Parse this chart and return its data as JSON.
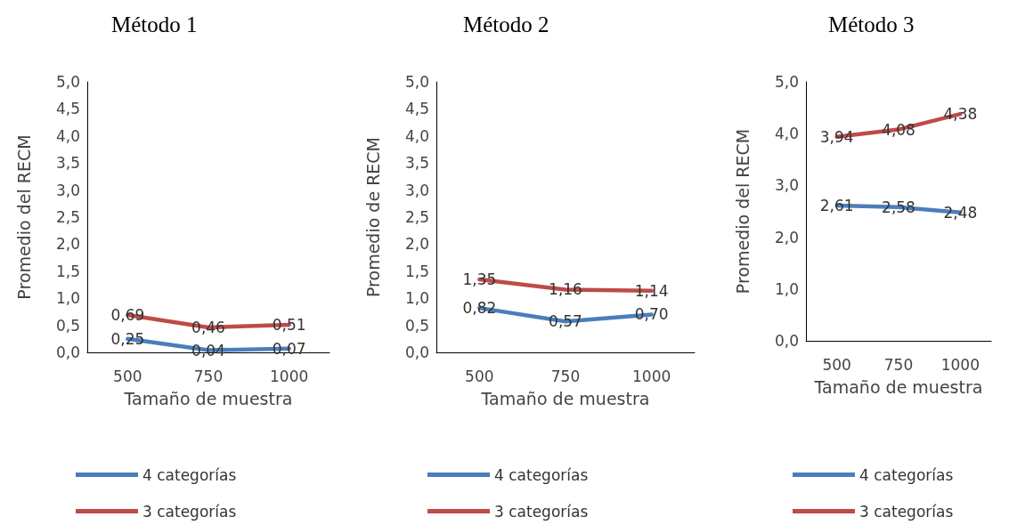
{
  "chart_data": [
    {
      "type": "line",
      "title": "Método 1",
      "xlabel": "Tamaño de muestra",
      "ylabel": "Promedio del RECM",
      "categories": [
        "500",
        "750",
        "1000"
      ],
      "series": [
        {
          "name": "4 categorías",
          "color": "#4a7ebb",
          "values": [
            0.25,
            0.04,
            0.07
          ],
          "value_labels": [
            "0,25",
            "0,04",
            "0,07"
          ]
        },
        {
          "name": "3 categorías",
          "color": "#be4b48",
          "values": [
            0.69,
            0.46,
            0.51
          ],
          "value_labels": [
            "0,69",
            "0,46",
            "0,51"
          ]
        }
      ],
      "ylim": [
        0,
        5
      ],
      "yticks": [
        {
          "value": 0,
          "label": "0,0"
        },
        {
          "value": 0.5,
          "label": "0,5"
        },
        {
          "value": 1,
          "label": "1,0"
        },
        {
          "value": 1.5,
          "label": "1,5"
        },
        {
          "value": 2,
          "label": "2,0"
        },
        {
          "value": 2.5,
          "label": "2,5"
        },
        {
          "value": 3,
          "label": "3,0"
        },
        {
          "value": 3.5,
          "label": "3,5"
        },
        {
          "value": 4,
          "label": "4,0"
        },
        {
          "value": 4.5,
          "label": "4,5"
        },
        {
          "value": 5,
          "label": "5,0"
        }
      ],
      "grid": false,
      "legend": "bottom",
      "marker": "none"
    },
    {
      "type": "line",
      "title": "Método 2",
      "xlabel": "Tamaño de muestra",
      "ylabel": "Promedio de RECM",
      "categories": [
        "500",
        "750",
        "1000"
      ],
      "series": [
        {
          "name": "4 categorías",
          "color": "#4a7ebb",
          "values": [
            0.82,
            0.57,
            0.7
          ],
          "value_labels": [
            "0,82",
            "0,57",
            "0,70"
          ]
        },
        {
          "name": "3 categorías",
          "color": "#be4b48",
          "values": [
            1.35,
            1.16,
            1.14
          ],
          "value_labels": [
            "1,35",
            "1,16",
            "1,14"
          ]
        }
      ],
      "ylim": [
        0,
        5
      ],
      "yticks": [
        {
          "value": 0,
          "label": "0,0"
        },
        {
          "value": 0.5,
          "label": "0,5"
        },
        {
          "value": 1,
          "label": "1,0"
        },
        {
          "value": 1.5,
          "label": "1,5"
        },
        {
          "value": 2,
          "label": "2,0"
        },
        {
          "value": 2.5,
          "label": "2,5"
        },
        {
          "value": 3,
          "label": "3,0"
        },
        {
          "value": 3.5,
          "label": "3,5"
        },
        {
          "value": 4,
          "label": "4,0"
        },
        {
          "value": 4.5,
          "label": "4,5"
        },
        {
          "value": 5,
          "label": "5,0"
        }
      ],
      "grid": false,
      "legend": "bottom",
      "marker": "none"
    },
    {
      "type": "line",
      "title": "Método 3",
      "xlabel": "Tamaño de muestra",
      "ylabel": "Promedio del RECM",
      "categories": [
        "500",
        "750",
        "1000"
      ],
      "series": [
        {
          "name": "4 categorías",
          "color": "#4a7ebb",
          "values": [
            2.61,
            2.58,
            2.48
          ],
          "value_labels": [
            "2,61",
            "2,58",
            "2,48"
          ]
        },
        {
          "name": "3 categorías",
          "color": "#be4b48",
          "values": [
            3.94,
            4.08,
            4.38
          ],
          "value_labels": [
            "3,94",
            "4,08",
            "4,38"
          ]
        }
      ],
      "ylim": [
        0,
        5
      ],
      "yticks": [
        {
          "value": 0,
          "label": "0,0"
        },
        {
          "value": 1,
          "label": "1,0"
        },
        {
          "value": 2,
          "label": "2,0"
        },
        {
          "value": 3,
          "label": "3,0"
        },
        {
          "value": 4,
          "label": "4,0"
        },
        {
          "value": 5,
          "label": "5,0"
        }
      ],
      "grid": false,
      "legend": "bottom",
      "marker": "none"
    }
  ]
}
